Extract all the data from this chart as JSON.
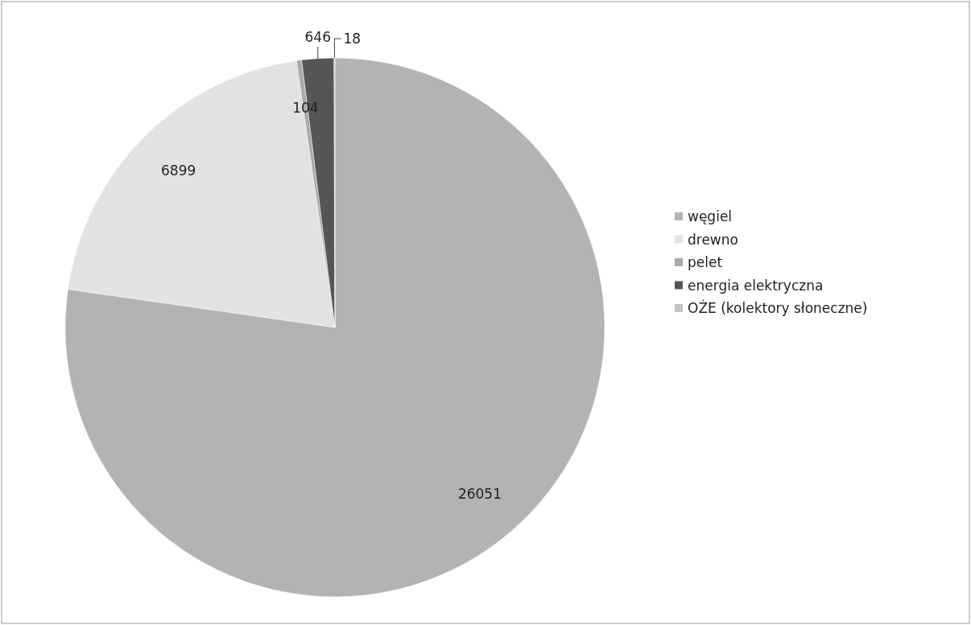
{
  "chart_data": {
    "type": "pie",
    "categories": [
      "węgiel",
      "drewno",
      "pelet",
      "energia elektryczna",
      "OŹE (kolektory słoneczne)"
    ],
    "values": [
      26051,
      6899,
      104,
      646,
      18
    ],
    "colors": [
      "#b3b3b3",
      "#e2e2e2",
      "#a9a9a9",
      "#555555",
      "#c4c4c4"
    ],
    "data_labels": true,
    "legend": "right"
  }
}
